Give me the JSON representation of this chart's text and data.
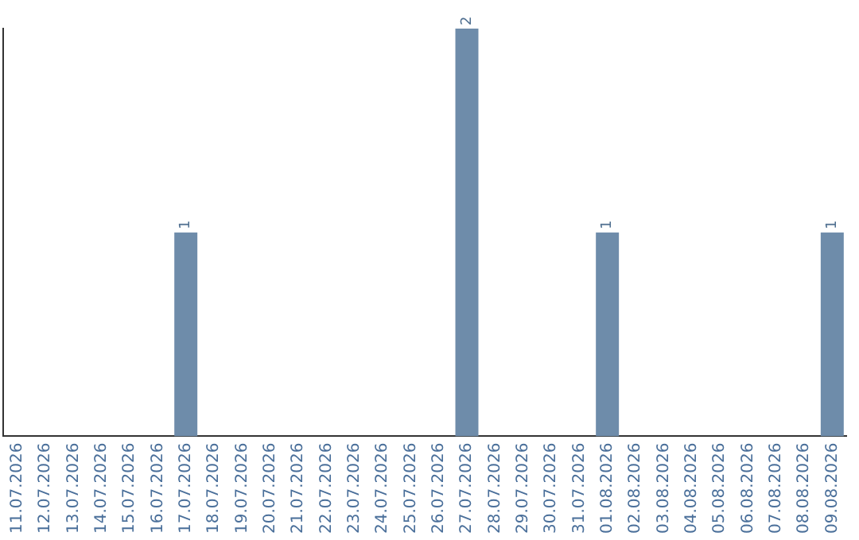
{
  "chart_data": {
    "type": "bar",
    "categories": [
      "11.07.2026",
      "12.07.2026",
      "13.07.2026",
      "14.07.2026",
      "15.07.2026",
      "16.07.2026",
      "17.07.2026",
      "18.07.2026",
      "19.07.2026",
      "20.07.2026",
      "21.07.2026",
      "22.07.2026",
      "23.07.2026",
      "24.07.2026",
      "25.07.2026",
      "26.07.2026",
      "27.07.2026",
      "28.07.2026",
      "29.07.2026",
      "30.07.2026",
      "31.07.2026",
      "01.08.2026",
      "02.08.2026",
      "03.08.2026",
      "04.08.2026",
      "05.08.2026",
      "06.08.2026",
      "07.08.2026",
      "08.08.2026",
      "09.08.2026"
    ],
    "values": [
      0,
      0,
      0,
      0,
      0,
      0,
      1,
      0,
      0,
      0,
      0,
      0,
      0,
      0,
      0,
      0,
      2,
      0,
      0,
      0,
      0,
      1,
      0,
      0,
      0,
      0,
      0,
      0,
      0,
      1
    ],
    "value_labels": [
      null,
      null,
      null,
      null,
      null,
      null,
      "1",
      null,
      null,
      null,
      null,
      null,
      null,
      null,
      null,
      null,
      "2",
      null,
      null,
      null,
      null,
      "1",
      null,
      null,
      null,
      null,
      null,
      null,
      null,
      "1"
    ],
    "color": "#6e8caa",
    "grid": false,
    "tick_labels": "x"
  }
}
